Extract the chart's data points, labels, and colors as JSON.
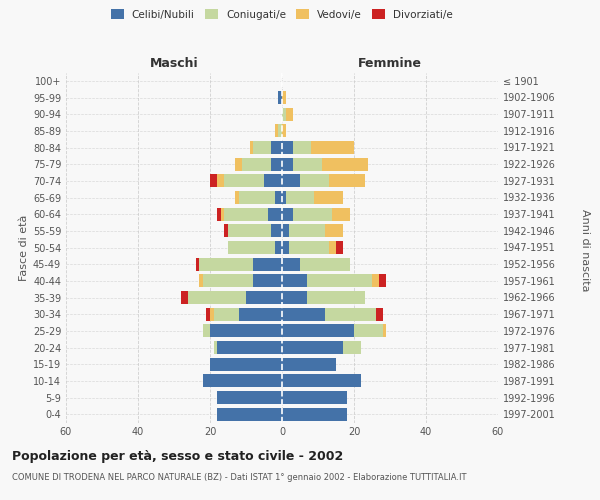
{
  "age_groups": [
    "0-4",
    "5-9",
    "10-14",
    "15-19",
    "20-24",
    "25-29",
    "30-34",
    "35-39",
    "40-44",
    "45-49",
    "50-54",
    "55-59",
    "60-64",
    "65-69",
    "70-74",
    "75-79",
    "80-84",
    "85-89",
    "90-94",
    "95-99",
    "100+"
  ],
  "birth_years": [
    "1997-2001",
    "1992-1996",
    "1987-1991",
    "1982-1986",
    "1977-1981",
    "1972-1976",
    "1967-1971",
    "1962-1966",
    "1957-1961",
    "1952-1956",
    "1947-1951",
    "1942-1946",
    "1937-1941",
    "1932-1936",
    "1927-1931",
    "1922-1926",
    "1917-1921",
    "1912-1916",
    "1907-1911",
    "1902-1906",
    "≤ 1901"
  ],
  "males": {
    "celibi": [
      18,
      18,
      22,
      20,
      18,
      20,
      12,
      10,
      8,
      8,
      2,
      3,
      4,
      2,
      5,
      3,
      3,
      0,
      0,
      1,
      0
    ],
    "coniugati": [
      0,
      0,
      0,
      0,
      1,
      2,
      7,
      16,
      14,
      15,
      13,
      12,
      12,
      10,
      11,
      8,
      5,
      1,
      0,
      0,
      0
    ],
    "vedovi": [
      0,
      0,
      0,
      0,
      0,
      0,
      1,
      0,
      1,
      0,
      0,
      0,
      1,
      1,
      2,
      2,
      1,
      1,
      0,
      0,
      0
    ],
    "divorziati": [
      0,
      0,
      0,
      0,
      0,
      0,
      1,
      2,
      0,
      1,
      0,
      1,
      1,
      0,
      2,
      0,
      0,
      0,
      0,
      0,
      0
    ]
  },
  "females": {
    "nubili": [
      18,
      18,
      22,
      15,
      17,
      20,
      12,
      7,
      7,
      5,
      2,
      2,
      3,
      1,
      5,
      3,
      3,
      0,
      0,
      0,
      0
    ],
    "coniugate": [
      0,
      0,
      0,
      0,
      5,
      8,
      14,
      16,
      18,
      14,
      11,
      10,
      11,
      8,
      8,
      8,
      5,
      0,
      1,
      0,
      0
    ],
    "vedove": [
      0,
      0,
      0,
      0,
      0,
      1,
      0,
      0,
      2,
      0,
      2,
      5,
      5,
      8,
      10,
      13,
      12,
      1,
      2,
      1,
      0
    ],
    "divorziate": [
      0,
      0,
      0,
      0,
      0,
      0,
      2,
      0,
      2,
      0,
      2,
      0,
      0,
      0,
      0,
      0,
      0,
      0,
      0,
      0,
      0
    ]
  },
  "colors": {
    "celibi": "#4472a8",
    "coniugati": "#c5d8a0",
    "vedovi": "#f0c060",
    "divorziati": "#cc2222"
  },
  "xlim": 60,
  "title": "Popolazione per età, sesso e stato civile - 2002",
  "subtitle": "COMUNE DI TRODENA NEL PARCO NATURALE (BZ) - Dati ISTAT 1° gennaio 2002 - Elaborazione TUTTITALIA.IT",
  "ylabel_left": "Fasce di età",
  "ylabel_right": "Anni di nascita",
  "xlabel_maschi": "Maschi",
  "xlabel_femmine": "Femmine",
  "bg_color": "#f8f8f8",
  "grid_color": "#cccccc"
}
